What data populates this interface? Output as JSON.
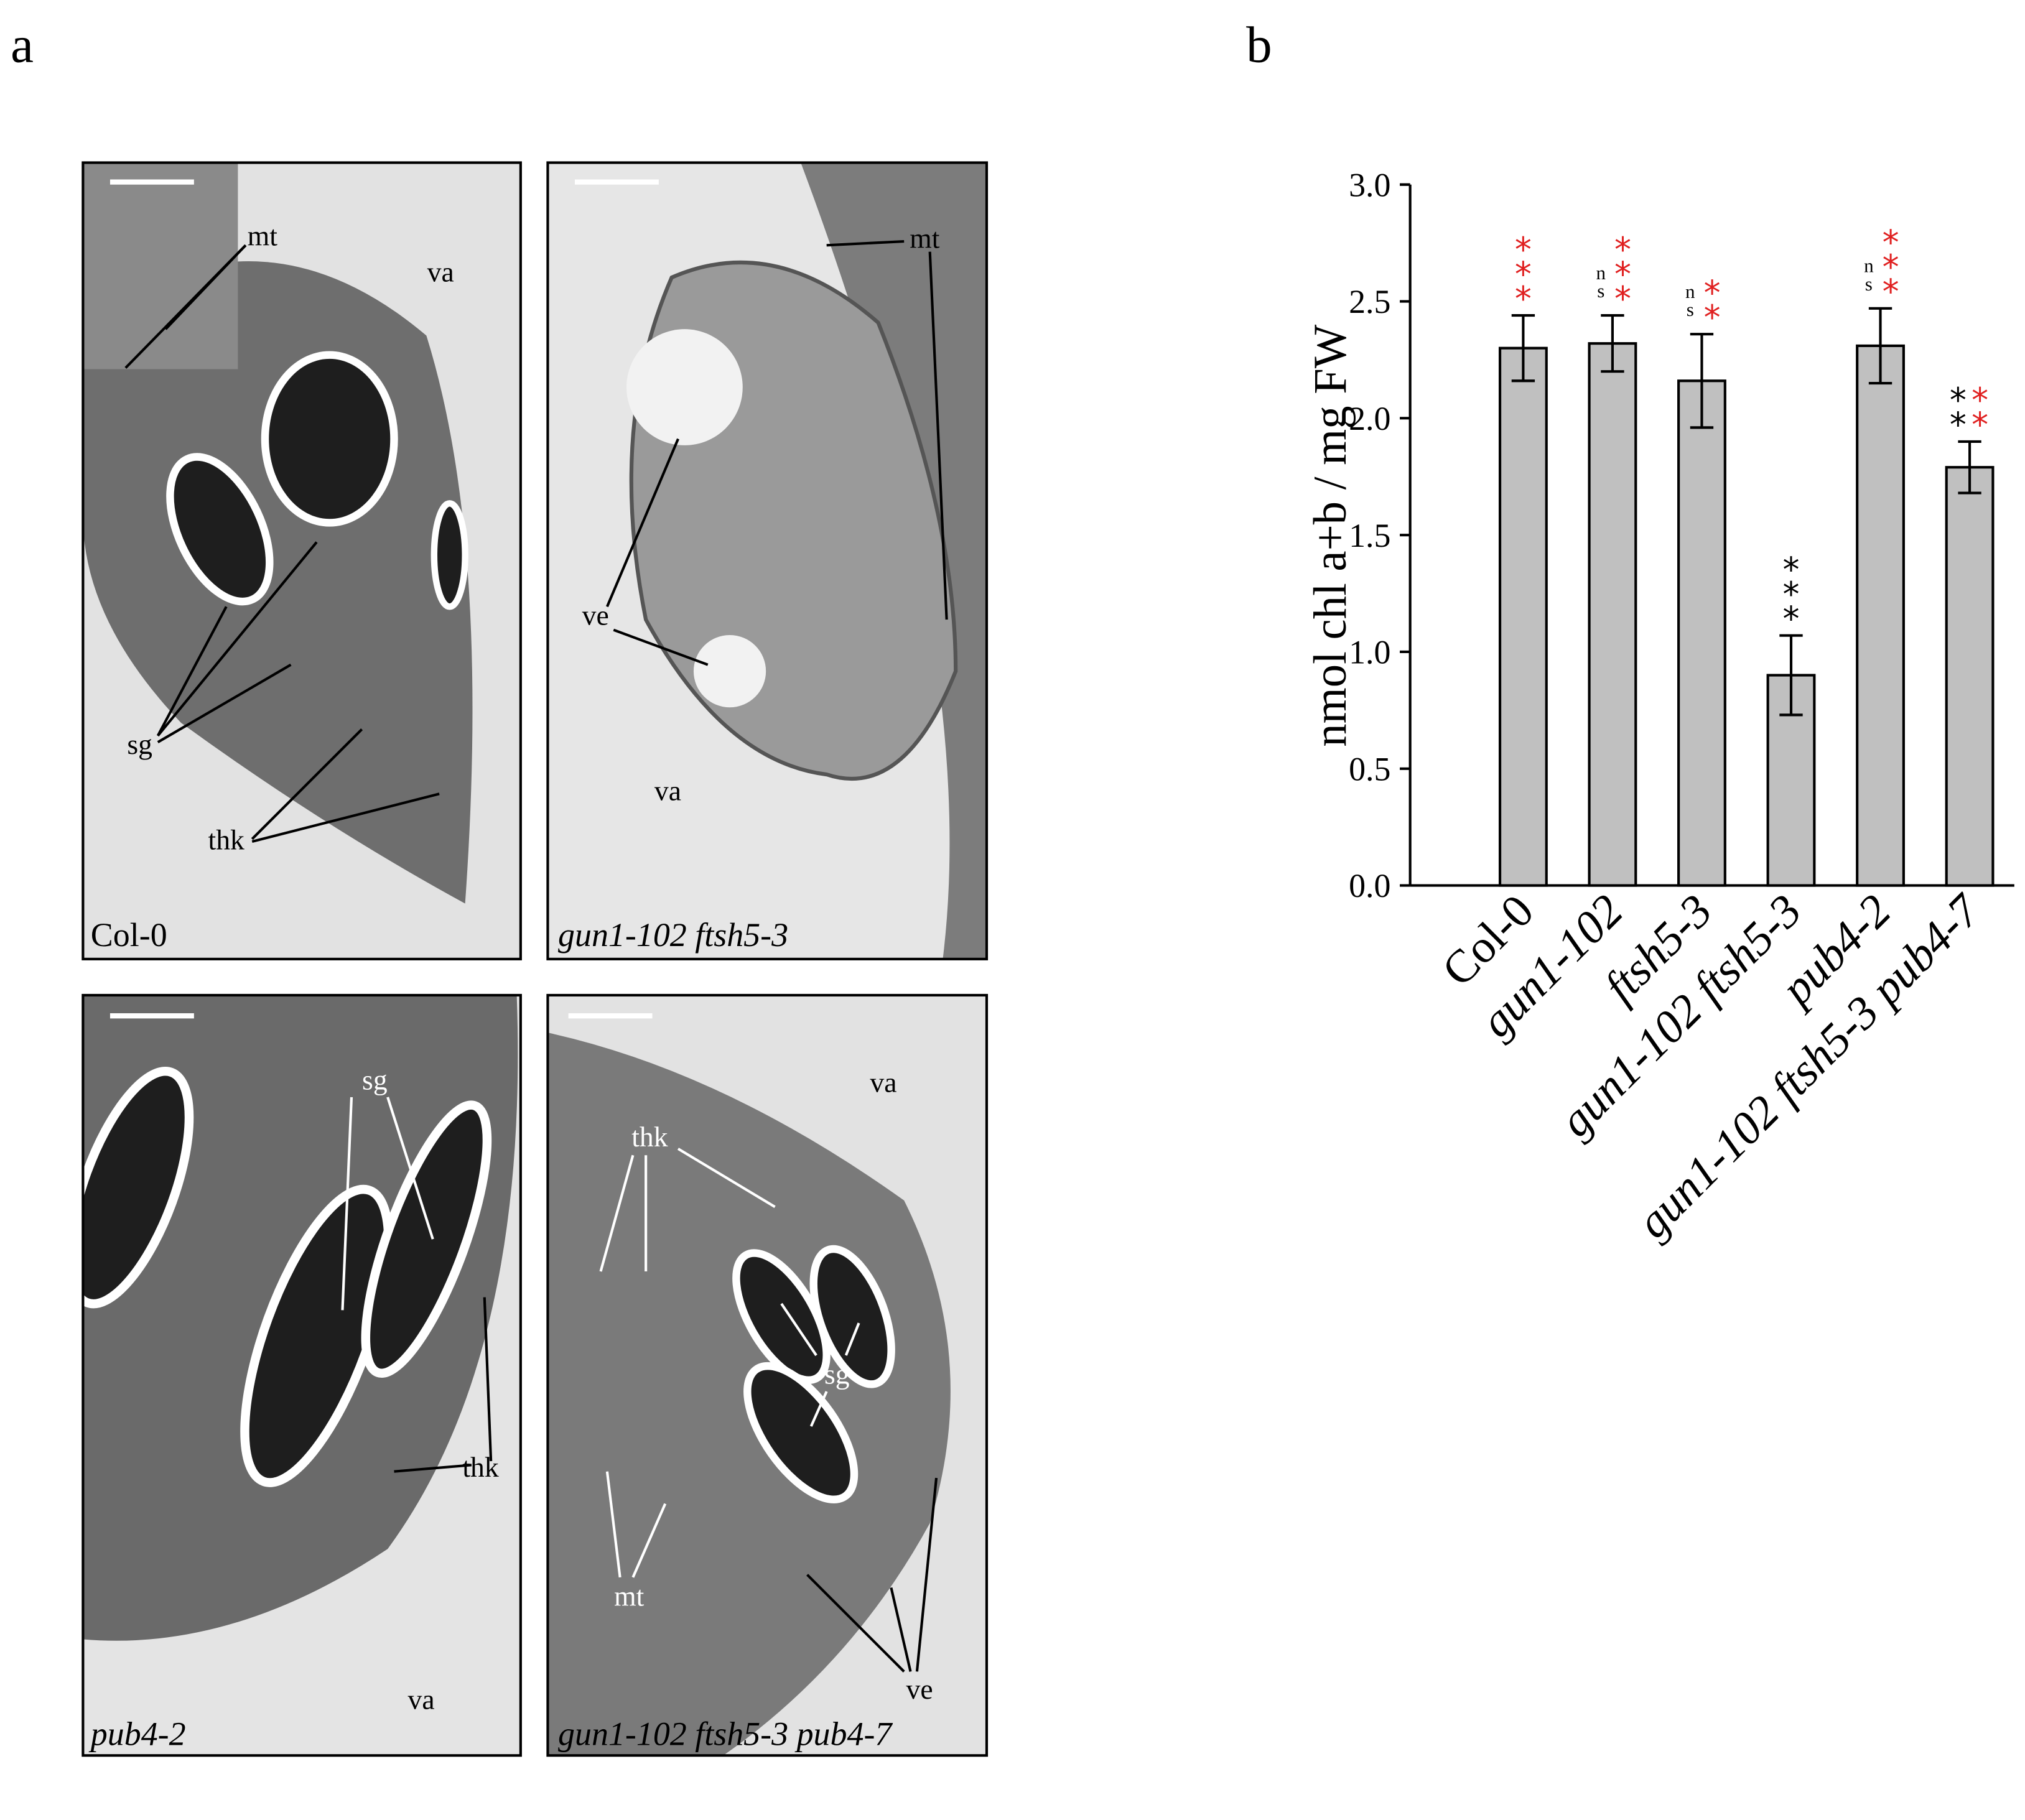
{
  "panel_labels": [
    "a",
    "b"
  ],
  "micrographs": [
    {
      "caption": "Col-0",
      "labels": [
        "mt",
        "va",
        "sg",
        "thk"
      ]
    },
    {
      "caption": "gun1-102 ftsh5-3",
      "labels": [
        "mt",
        "ve",
        "va"
      ]
    },
    {
      "caption": "pub4-2",
      "labels": [
        "sg",
        "thk",
        "va"
      ]
    },
    {
      "caption": "gun1-102 ftsh5-3 pub4-7",
      "labels": [
        "va",
        "thk",
        "sg",
        "mt",
        "ve"
      ]
    }
  ],
  "chart_data": {
    "type": "bar",
    "y_label": "nmol chl a+b / mg FW",
    "categories": [
      "Col-0",
      "gun1-102",
      "ftsh5-3",
      "gun1-102 ftsh5-3",
      "pub4-2",
      "gun1-102 ftsh5-3 pub4-7"
    ],
    "values": [
      2.3,
      2.32,
      2.16,
      0.9,
      2.31,
      1.79
    ],
    "errors": [
      0.14,
      0.12,
      0.2,
      0.17,
      0.16,
      0.11
    ],
    "color": "#c0c0c0",
    "ylim": [
      0,
      3
    ],
    "yticks": [
      {
        "value": 0,
        "label": "0.0"
      },
      0.5,
      {
        "value": 1,
        "label": "1.0"
      },
      1.5,
      {
        "value": 2,
        "label": "2.0"
      },
      2.5,
      {
        "value": 3,
        "label": "3.0"
      }
    ],
    "significance": [
      [
        {
          "text": "***",
          "color": "#e02020"
        }
      ],
      [
        {
          "text": "ns",
          "color": "#000000"
        },
        {
          "text": "***",
          "color": "#e02020"
        }
      ],
      [
        {
          "text": "ns",
          "color": "#000000"
        },
        {
          "text": "**",
          "color": "#e02020"
        }
      ],
      [
        {
          "text": "***",
          "color": "#000000"
        }
      ],
      [
        {
          "text": "ns",
          "color": "#000000"
        },
        {
          "text": "***",
          "color": "#e02020"
        }
      ],
      [
        {
          "text": "**",
          "color": "#000000"
        },
        {
          "text": "**",
          "color": "#e02020"
        }
      ]
    ]
  }
}
